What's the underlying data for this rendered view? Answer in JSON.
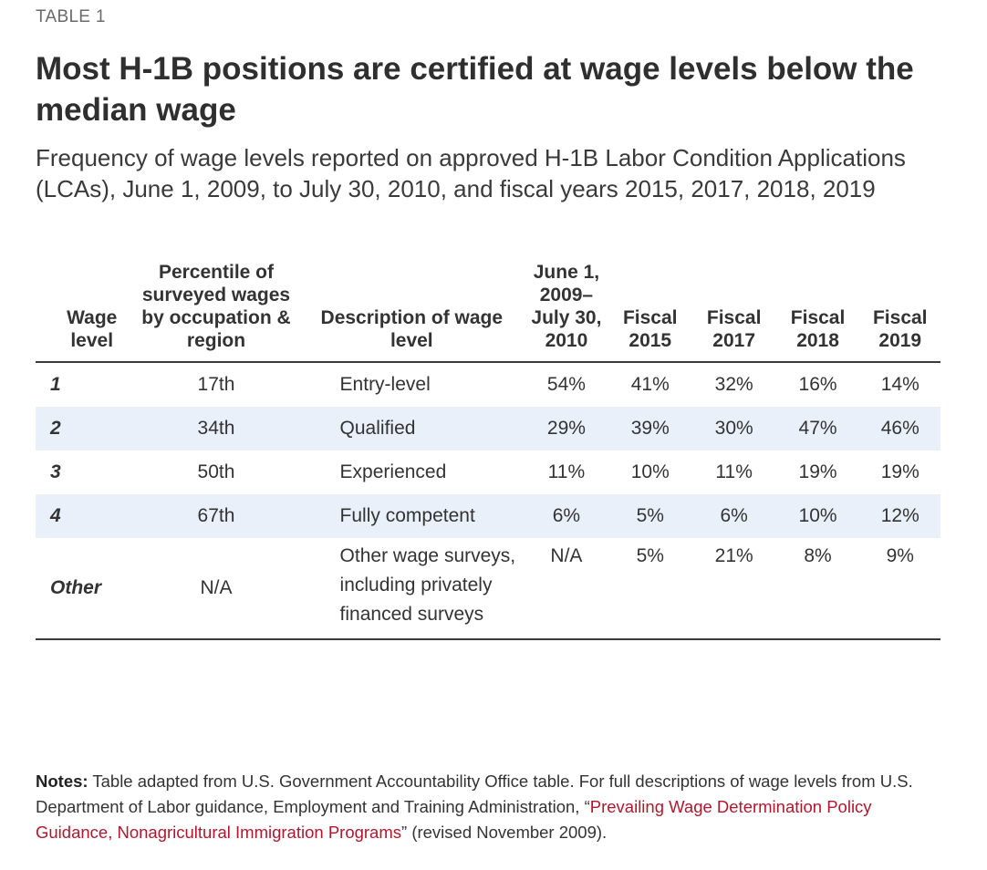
{
  "eyebrow": "TABLE 1",
  "title": "Most H-1B positions are certified at wage levels below the median wage",
  "subtitle": "Frequency of wage levels reported on approved H-1B Labor Condition Applications (LCAs), June 1, 2009, to July 30, 2010, and fiscal years 2015, 2017, 2018, 2019",
  "colors": {
    "row_shade": "#e9f0fa",
    "rule": "#3a3a3a",
    "link": "#b0182e"
  },
  "chart_data": {
    "type": "table",
    "columns": [
      "Wage level",
      "Percentile of surveyed wages by occupation & region",
      "Description of wage level",
      "June 1, 2009– July 30, 2010",
      "Fiscal 2015",
      "Fiscal 2017",
      "Fiscal 2018",
      "Fiscal 2019"
    ],
    "rows": [
      {
        "level": "1",
        "percentile": "17th",
        "description": "Entry-level",
        "jun2009_jul2010": "54%",
        "fy2015": "41%",
        "fy2017": "32%",
        "fy2018": "16%",
        "fy2019": "14%"
      },
      {
        "level": "2",
        "percentile": "34th",
        "description": "Qualified",
        "jun2009_jul2010": "29%",
        "fy2015": "39%",
        "fy2017": "30%",
        "fy2018": "47%",
        "fy2019": "46%"
      },
      {
        "level": "3",
        "percentile": "50th",
        "description": "Experienced",
        "jun2009_jul2010": "11%",
        "fy2015": "10%",
        "fy2017": "11%",
        "fy2018": "19%",
        "fy2019": "19%"
      },
      {
        "level": "4",
        "percentile": "67th",
        "description": "Fully competent",
        "jun2009_jul2010": "6%",
        "fy2015": "5%",
        "fy2017": "6%",
        "fy2018": "10%",
        "fy2019": "12%"
      },
      {
        "level": "Other",
        "percentile": "N/A",
        "description": "Other wage surveys, including privately financed surveys",
        "jun2009_jul2010": "N/A",
        "fy2015": "5%",
        "fy2017": "21%",
        "fy2018": "8%",
        "fy2019": "9%"
      }
    ]
  },
  "notes": {
    "label": "Notes:",
    "text_before": " Table adapted from U.S. Government Accountability Office table. For full descriptions of wage levels from U.S. Department of Labor guidance, Employment and Training Administration, “",
    "link_text": "Prevailing Wage Determination Policy Guidance, Nonagricultural Immigration Programs",
    "text_after": "” (revised November 2009)."
  }
}
